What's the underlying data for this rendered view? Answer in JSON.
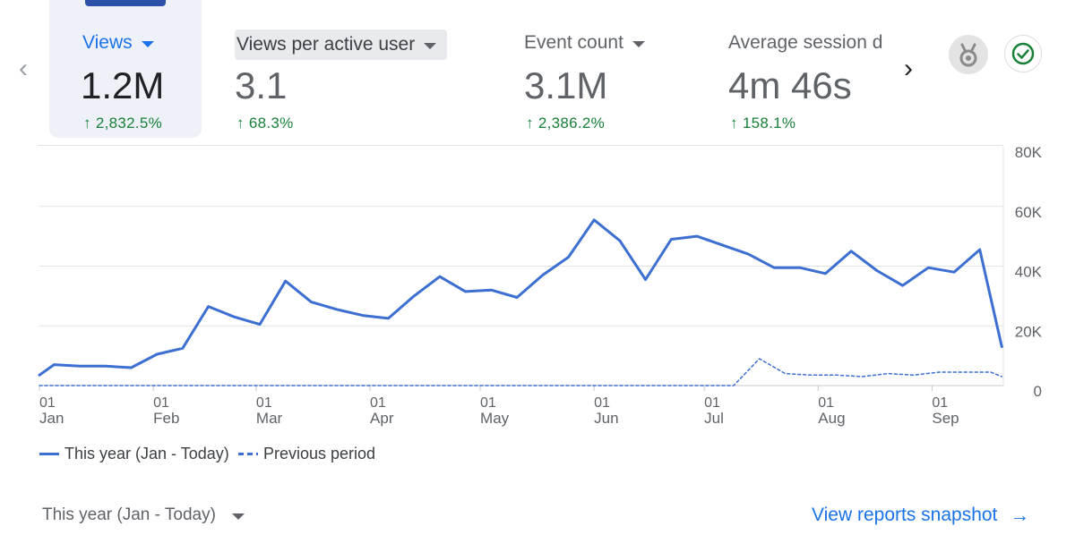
{
  "colors": {
    "accent": "#1a73e8",
    "line": "#3c6fd1",
    "positive": "#188038"
  },
  "metrics": [
    {
      "label": "Views",
      "value": "1.2M",
      "change": "2,832.5%"
    },
    {
      "label": "Views per active user",
      "value": "3.1",
      "change": "68.3%"
    },
    {
      "label": "Event count",
      "value": "3.1M",
      "change": "2,386.2%"
    },
    {
      "label": "Average session duration",
      "value": "4m 46s",
      "change": "158.1%"
    }
  ],
  "icons": {
    "prev": "chevron-left-icon",
    "next": "chevron-right-icon",
    "medal": "medal-icon",
    "check": "check-circle-icon"
  },
  "legend": {
    "current": "This year (Jan - Today)",
    "previous": "Previous period"
  },
  "footer": {
    "period": "This year (Jan - Today)",
    "snapshot": "View reports snapshot"
  },
  "chart_data": {
    "type": "line",
    "ylim": [
      0,
      80000
    ],
    "yticks": [
      {
        "value": 0,
        "label": "0"
      },
      {
        "value": 20000,
        "label": "20K"
      },
      {
        "value": 40000,
        "label": "40K"
      },
      {
        "value": 60000,
        "label": "60K"
      },
      {
        "value": 80000,
        "label": "80K"
      }
    ],
    "xlim": [
      1,
      260
    ],
    "xticks": [
      {
        "day": 1,
        "day_label": "01",
        "month": "Jan"
      },
      {
        "day": 32,
        "day_label": "01",
        "month": "Feb"
      },
      {
        "day": 60,
        "day_label": "01",
        "month": "Mar"
      },
      {
        "day": 91,
        "day_label": "01",
        "month": "Apr"
      },
      {
        "day": 121,
        "day_label": "01",
        "month": "May"
      },
      {
        "day": 152,
        "day_label": "01",
        "month": "Jun"
      },
      {
        "day": 182,
        "day_label": "01",
        "month": "Jul"
      },
      {
        "day": 213,
        "day_label": "01",
        "month": "Aug"
      },
      {
        "day": 244,
        "day_label": "01",
        "month": "Sep"
      }
    ],
    "series": [
      {
        "name": "This year (Jan - Today)",
        "style": "solid",
        "x": [
          1,
          5,
          12,
          19,
          26,
          33,
          40,
          47,
          54,
          61,
          68,
          75,
          82,
          89,
          96,
          103,
          110,
          117,
          124,
          131,
          138,
          145,
          152,
          159,
          166,
          173,
          180,
          187,
          194,
          201,
          208,
          215,
          222,
          229,
          236,
          243,
          250,
          257,
          263
        ],
        "y": [
          3500,
          7000,
          6500,
          6500,
          6000,
          10500,
          12500,
          26500,
          23000,
          20500,
          35000,
          28000,
          25500,
          23500,
          22500,
          30000,
          36500,
          31500,
          32000,
          29500,
          37000,
          43000,
          55500,
          48500,
          35500,
          49000,
          50000,
          47000,
          44000,
          39500,
          39500,
          37500,
          45000,
          38500,
          33500,
          39500,
          38000,
          45500,
          13000
        ]
      },
      {
        "name": "Previous period",
        "style": "dashed",
        "x": [
          1,
          190,
          197,
          204,
          211,
          218,
          225,
          232,
          239,
          246,
          253,
          260,
          263
        ],
        "y": [
          0,
          0,
          9000,
          4000,
          3500,
          3500,
          3000,
          4000,
          3500,
          4500,
          4500,
          4500,
          3000
        ]
      }
    ]
  }
}
